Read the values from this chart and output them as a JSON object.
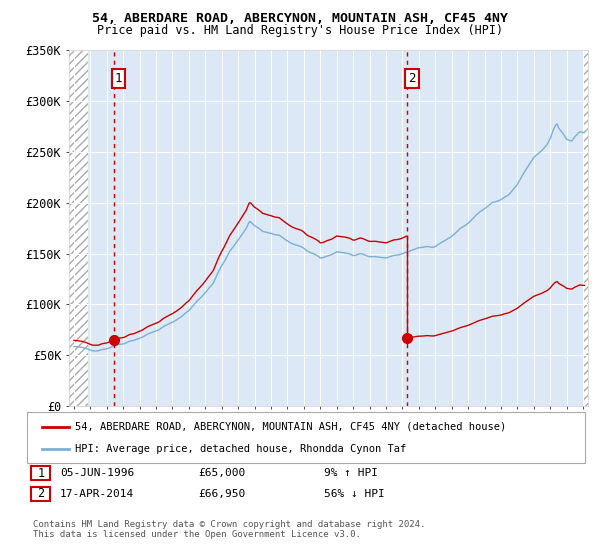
{
  "title": "54, ABERDARE ROAD, ABERCYNON, MOUNTAIN ASH, CF45 4NY",
  "subtitle": "Price paid vs. HM Land Registry's House Price Index (HPI)",
  "property_label": "54, ABERDARE ROAD, ABERCYNON, MOUNTAIN ASH, CF45 4NY (detached house)",
  "hpi_label": "HPI: Average price, detached house, Rhondda Cynon Taf",
  "transaction1": {
    "num": 1,
    "date": "05-JUN-1996",
    "price": "£65,000",
    "hpi_note": "9% ↑ HPI"
  },
  "transaction2": {
    "num": 2,
    "date": "17-APR-2014",
    "price": "£66,950",
    "hpi_note": "56% ↓ HPI"
  },
  "copyright": "Contains HM Land Registry data © Crown copyright and database right 2024.\nThis data is licensed under the Open Government Licence v3.0.",
  "ylim": [
    0,
    350000
  ],
  "yticks": [
    0,
    50000,
    100000,
    150000,
    200000,
    250000,
    300000,
    350000
  ],
  "ytick_labels": [
    "£0",
    "£50K",
    "£100K",
    "£150K",
    "£200K",
    "£250K",
    "£300K",
    "£350K"
  ],
  "property_color": "#cc0000",
  "hpi_color": "#7ab0d4",
  "vline_color": "#cc0000",
  "transaction1_x": 1996.42,
  "transaction2_x": 2014.29,
  "transaction1_y": 65000,
  "transaction2_y": 66950,
  "xlim_left": 1994.0,
  "xlim_right": 2025.3
}
